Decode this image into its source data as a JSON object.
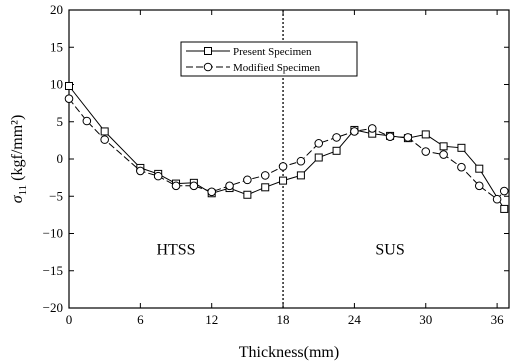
{
  "chart_data": {
    "type": "line",
    "xlabel": "Thickness(mm)",
    "ylabel_main": "σ",
    "ylabel_sub": "11",
    "ylabel_rest": " (kgf/mm²)",
    "xlim": [
      0,
      37
    ],
    "ylim": [
      -20,
      20
    ],
    "xticks": [
      0,
      6,
      12,
      18,
      24,
      30,
      36
    ],
    "yticks": [
      -20,
      -15,
      -10,
      -5,
      0,
      5,
      10,
      15,
      20
    ],
    "ytick_labels": [
      "−20",
      "−15",
      "−10",
      "−5",
      "0",
      "5",
      "10",
      "15",
      "20"
    ],
    "divider_x": 18,
    "regions": [
      {
        "label": "HTSS",
        "x": 9,
        "y": -12
      },
      {
        "label": "SUS",
        "x": 27,
        "y": -12
      }
    ],
    "legend_position": "top-center",
    "series": [
      {
        "name": "Present Specimen",
        "marker": "square",
        "x": [
          0,
          3,
          6,
          7.5,
          9,
          10.5,
          12,
          13.5,
          15,
          16.5,
          18,
          19.5,
          21,
          22.5,
          24,
          25.5,
          27,
          28.5,
          30,
          31.5,
          33,
          34.5,
          36.6
        ],
        "y": [
          9.8,
          3.7,
          -1.2,
          -2.0,
          -3.3,
          -3.2,
          -4.6,
          -3.9,
          -4.8,
          -3.8,
          -2.9,
          -2.2,
          0.2,
          1.1,
          3.9,
          3.4,
          3.1,
          2.8,
          3.3,
          1.7,
          1.5,
          -1.3,
          -6.7
        ]
      },
      {
        "name": "Modified Specimen",
        "marker": "circle",
        "x": [
          0,
          1.5,
          3,
          6,
          7.5,
          9,
          10.5,
          12,
          13.5,
          15,
          16.5,
          18,
          19.5,
          21,
          22.5,
          24,
          25.5,
          27,
          28.5,
          30,
          31.5,
          33,
          34.5,
          36,
          36.6
        ],
        "y": [
          8.1,
          5.1,
          2.6,
          -1.6,
          -2.3,
          -3.6,
          -3.6,
          -4.4,
          -3.6,
          -2.8,
          -2.2,
          -1.0,
          -0.3,
          2.1,
          2.9,
          3.7,
          4.1,
          3.0,
          2.9,
          1.0,
          0.6,
          -1.1,
          -3.6,
          -5.4,
          -4.3
        ]
      }
    ]
  }
}
